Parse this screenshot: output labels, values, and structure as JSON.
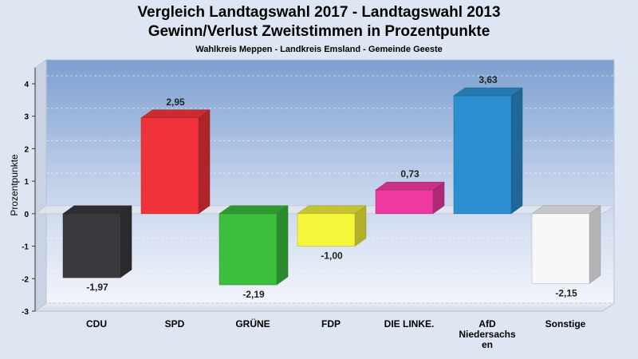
{
  "chart_data": {
    "type": "bar",
    "title_line1": "Vergleich Landtagswahl 2017 - Landtagswahl 2013",
    "title_line2": "Gewinn/Verlust Zweitstimmen in Prozentpunkte",
    "subtitle": "Wahlkreis Meppen - Landkreis Emsland - Gemeinde Geeste",
    "ylabel": "Prozentpunkte",
    "ylim": [
      -3,
      4
    ],
    "yticks": [
      4,
      3,
      2,
      1,
      0,
      -1,
      -2,
      -3
    ],
    "grid": true,
    "categories": [
      [
        "CDU"
      ],
      [
        "SPD"
      ],
      [
        "GRÜNE"
      ],
      [
        "FDP"
      ],
      [
        "DIE LINKE."
      ],
      [
        "AfD",
        "Niedersachs",
        "en"
      ],
      [
        "Sonstige"
      ]
    ],
    "values": [
      -1.97,
      2.95,
      -2.19,
      -1.0,
      0.73,
      3.63,
      -2.15
    ],
    "value_labels": [
      "-1,97",
      "2,95",
      "-2,19",
      "-1,00",
      "0,73",
      "3,63",
      "-2,15"
    ],
    "colors": [
      "#3a3a3e",
      "#f0333a",
      "#3cbf3c",
      "#f5f53c",
      "#ee3aa0",
      "#2b8fd0",
      "#f8f8fb"
    ]
  }
}
